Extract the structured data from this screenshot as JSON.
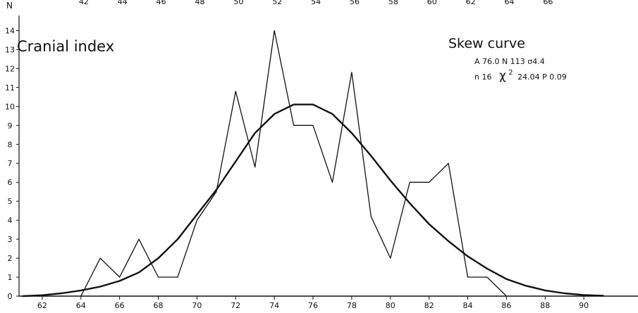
{
  "chart_data": {
    "type": "line",
    "title": "Cranial index",
    "subtitle": "Skew curve",
    "ylabel": "N",
    "xlim": [
      60.8,
      92
    ],
    "ylim": [
      0,
      14.5
    ],
    "xticks": [
      62,
      64,
      66,
      68,
      70,
      72,
      74,
      76,
      78,
      80,
      82,
      84,
      86,
      88,
      90
    ],
    "yticks": [
      0,
      1,
      2,
      3,
      4,
      5,
      6,
      7,
      8,
      9,
      10,
      11,
      12,
      13,
      14
    ],
    "top_ticks": [
      42,
      44,
      46,
      48,
      50,
      52,
      54,
      56,
      58,
      60,
      62,
      64,
      66
    ],
    "stats": {
      "line1": "A 76.0  N 113 σ4.4",
      "line2_prefix": "n 16",
      "line2_chi": "χ",
      "line2_sup": "2",
      "line2_suffix": "24.04   P 0.09"
    },
    "grid": false,
    "legend": "none",
    "series": [
      {
        "style": "thin",
        "x": [
          64,
          65,
          66,
          67,
          68,
          69,
          70,
          71,
          72,
          73,
          74,
          75,
          76,
          77,
          78,
          79,
          80,
          81,
          82,
          83,
          84,
          85,
          86
        ],
        "y": [
          0,
          2,
          1,
          3,
          1,
          1,
          4,
          5.5,
          10.8,
          6.8,
          14,
          9,
          9,
          6,
          11.8,
          4.2,
          2,
          6,
          6,
          7,
          1,
          1,
          0
        ]
      },
      {
        "style": "bold",
        "x": [
          61,
          62,
          63,
          64,
          65,
          66,
          67,
          68,
          69,
          70,
          71,
          72,
          73,
          74,
          75,
          76,
          77,
          78,
          79,
          80,
          81,
          82,
          83,
          84,
          85,
          86,
          87,
          88,
          89,
          90,
          91
        ],
        "y": [
          0,
          0.05,
          0.15,
          0.3,
          0.5,
          0.8,
          1.25,
          2.0,
          3.0,
          4.3,
          5.6,
          7.1,
          8.6,
          9.6,
          10.1,
          10.1,
          9.6,
          8.6,
          7.4,
          6.1,
          4.9,
          3.8,
          2.9,
          2.1,
          1.45,
          0.9,
          0.55,
          0.3,
          0.15,
          0.06,
          0.02
        ]
      }
    ],
    "colors": {
      "line": "#111111",
      "background": "#ffffff"
    }
  }
}
